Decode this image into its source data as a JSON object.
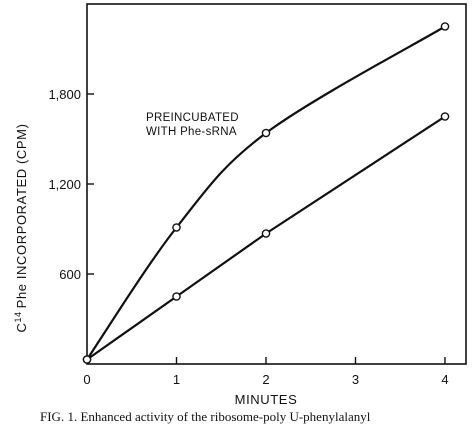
{
  "chart_data": {
    "type": "line",
    "ylabel": "C14 Phe INCORPORATED (CPM)",
    "ylabel_parts": {
      "sup": "14",
      "main": "Phe INCORPORATED (CPM)"
    },
    "ylabel_prefix": "C",
    "xlabel": "MINUTES",
    "x_ticks": [
      "0",
      "1",
      "2",
      "3",
      "4"
    ],
    "y_ticks": [
      "600",
      "1,200",
      "1,800"
    ],
    "xlim": [
      0,
      4.2
    ],
    "ylim": [
      0,
      2400
    ],
    "annotation": [
      "PREINCUBATED",
      "WITH Phe-sRNA"
    ],
    "series": [
      {
        "x": [
          0,
          1,
          2,
          4
        ],
        "y": [
          30,
          910,
          1540,
          2250
        ]
      },
      {
        "x": [
          0,
          1,
          2,
          4
        ],
        "y": [
          30,
          450,
          870,
          1650
        ]
      }
    ],
    "caption": "FIG. 1. Enhanced activity of the ribosome-poly U-phenylalanyl",
    "grid": false
  }
}
